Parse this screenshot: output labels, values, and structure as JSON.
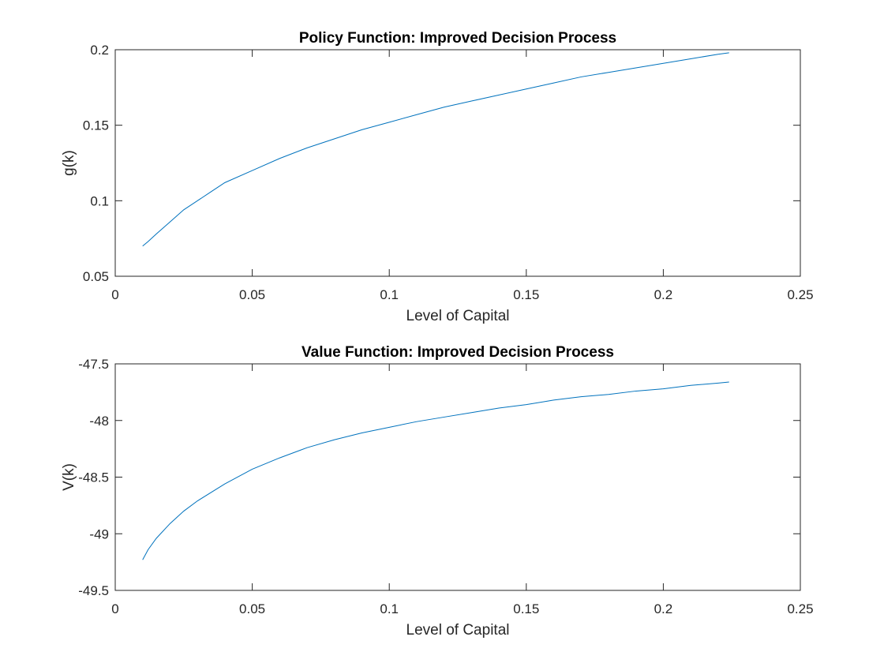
{
  "chart_data": [
    {
      "type": "line",
      "title": "Policy Function: Improved Decision Process",
      "xlabel": "Level of Capital",
      "ylabel": "g(k)",
      "xlim": [
        0,
        0.25
      ],
      "ylim": [
        0.05,
        0.2
      ],
      "xticks": [
        0,
        0.05,
        0.1,
        0.15,
        0.2,
        0.25
      ],
      "xtick_labels": [
        "0",
        "0.05",
        "0.1",
        "0.15",
        "0.2",
        "0.25"
      ],
      "yticks": [
        0.05,
        0.1,
        0.15,
        0.2
      ],
      "ytick_labels": [
        "0.05",
        "0.1",
        "0.15",
        "0.2"
      ],
      "grid": false,
      "series": [
        {
          "color": "#0072BD",
          "x": [
            0.01,
            0.012,
            0.015,
            0.02,
            0.025,
            0.03,
            0.035,
            0.04,
            0.05,
            0.06,
            0.07,
            0.08,
            0.09,
            0.1,
            0.11,
            0.12,
            0.13,
            0.14,
            0.15,
            0.16,
            0.17,
            0.18,
            0.19,
            0.2,
            0.21,
            0.22,
            0.224
          ],
          "y": [
            0.07,
            0.073,
            0.078,
            0.086,
            0.094,
            0.1,
            0.106,
            0.112,
            0.12,
            0.128,
            0.135,
            0.141,
            0.147,
            0.152,
            0.157,
            0.162,
            0.166,
            0.17,
            0.174,
            0.178,
            0.182,
            0.185,
            0.188,
            0.191,
            0.194,
            0.197,
            0.198
          ]
        }
      ]
    },
    {
      "type": "line",
      "title": "Value Function: Improved Decision Process",
      "xlabel": "Level of Capital",
      "ylabel": "V(k)",
      "xlim": [
        0,
        0.25
      ],
      "ylim": [
        -49.5,
        -47.5
      ],
      "xticks": [
        0,
        0.05,
        0.1,
        0.15,
        0.2,
        0.25
      ],
      "xtick_labels": [
        "0",
        "0.05",
        "0.1",
        "0.15",
        "0.2",
        "0.25"
      ],
      "yticks": [
        -49.5,
        -49,
        -48.5,
        -48,
        -47.5
      ],
      "ytick_labels": [
        "-49.5",
        "-49",
        "-48.5",
        "-48",
        "-47.5"
      ],
      "grid": false,
      "series": [
        {
          "color": "#0072BD",
          "x": [
            0.01,
            0.012,
            0.015,
            0.02,
            0.025,
            0.03,
            0.04,
            0.05,
            0.06,
            0.07,
            0.08,
            0.09,
            0.1,
            0.11,
            0.12,
            0.13,
            0.14,
            0.15,
            0.16,
            0.17,
            0.18,
            0.19,
            0.2,
            0.21,
            0.22,
            0.224
          ],
          "y": [
            -49.23,
            -49.14,
            -49.04,
            -48.91,
            -48.8,
            -48.71,
            -48.56,
            -48.43,
            -48.33,
            -48.24,
            -48.17,
            -48.11,
            -48.06,
            -48.01,
            -47.97,
            -47.93,
            -47.89,
            -47.86,
            -47.82,
            -47.79,
            -47.77,
            -47.74,
            -47.72,
            -47.69,
            -47.67,
            -47.66
          ]
        }
      ]
    }
  ]
}
